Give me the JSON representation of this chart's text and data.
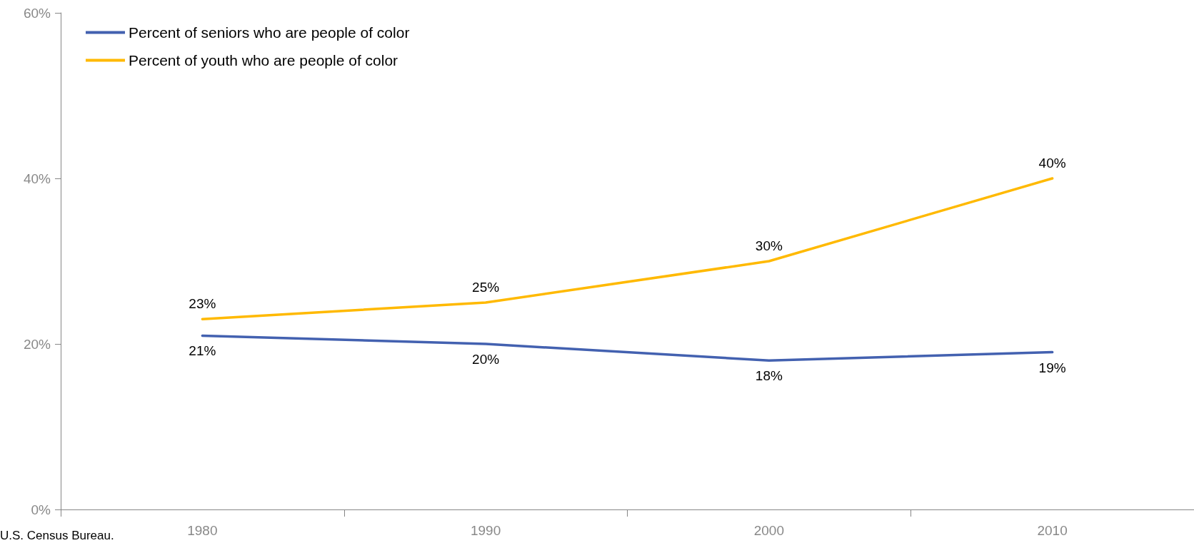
{
  "chart_data": {
    "type": "line",
    "categories": [
      "1980",
      "1990",
      "2000",
      "2010"
    ],
    "series": [
      {
        "name": "Percent of seniors who are people of color",
        "color": "#4361b0",
        "values": [
          21,
          20,
          18,
          19
        ],
        "value_labels": [
          "21%",
          "20%",
          "18%",
          "19%"
        ]
      },
      {
        "name": "Percent of youth who are people of color",
        "color": "#ffb900",
        "values": [
          23,
          25,
          30,
          40
        ],
        "value_labels": [
          "23%",
          "25%",
          "30%",
          "40%"
        ]
      }
    ],
    "ylim": [
      0,
      60
    ],
    "yticks": [
      {
        "value": 0,
        "label": "0%"
      },
      {
        "value": 20,
        "label": "20%"
      },
      {
        "value": 40,
        "label": "40%"
      },
      {
        "value": 60,
        "label": "60%"
      }
    ],
    "grid": false,
    "legend": "top left",
    "marker": "none",
    "line_style": "solid",
    "annotations": [
      "U.S. Census Bureau."
    ]
  }
}
